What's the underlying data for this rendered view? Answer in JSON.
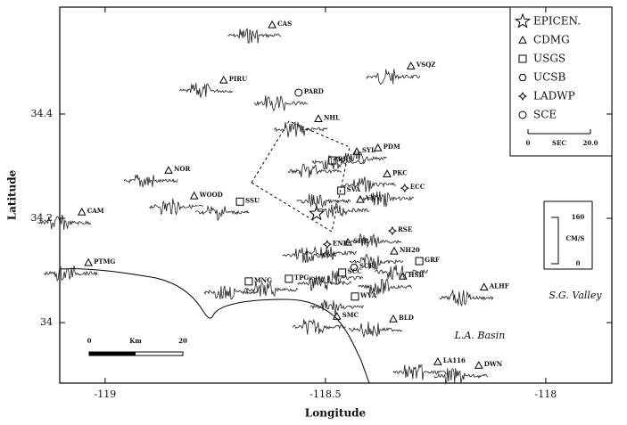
{
  "chart_data": {
    "type": "scatter",
    "xlabel": "Longitude",
    "ylabel": "Latitude",
    "xlim": [
      -119.103,
      -117.85
    ],
    "ylim": [
      33.884,
      34.605
    ],
    "xticks": [
      -119,
      -118.5,
      -118
    ],
    "yticks": [
      34,
      34.2,
      34.4
    ],
    "series": [
      {
        "name": "EPICEN.",
        "marker": "star",
        "x": [
          -118.52
        ],
        "y": [
          34.209
        ]
      },
      {
        "name": "CDMG",
        "marker": "triangle",
        "labels": [
          "CAS",
          "VSQZ",
          "PIRU",
          "NHL",
          "SYL",
          "PDM",
          "NOR",
          "PKC",
          "WOOD",
          "VNY",
          "CAM",
          "SHR",
          "NH20",
          "PTMG",
          "HSB",
          "ALHF",
          "SMC",
          "BLD",
          "LA116",
          "DWN"
        ],
        "x": [
          -118.621,
          -118.306,
          -118.731,
          -118.516,
          -118.429,
          -118.381,
          -118.856,
          -118.36,
          -118.798,
          -118.421,
          -119.053,
          -118.449,
          -118.344,
          -119.038,
          -118.324,
          -118.14,
          -118.474,
          -118.346,
          -118.245,
          -118.152
        ],
        "y": [
          34.571,
          34.492,
          34.465,
          34.391,
          34.328,
          34.335,
          34.292,
          34.285,
          34.243,
          34.236,
          34.212,
          34.154,
          34.137,
          34.115,
          34.089,
          34.068,
          34.012,
          34.007,
          33.925,
          33.918
        ]
      },
      {
        "name": "USGS",
        "marker": "square",
        "labels": [
          "RRS",
          "SSU",
          "SVA",
          "GRF",
          "SCC",
          "MNG",
          "TPG",
          "WVA"
        ],
        "x": [
          -118.484,
          -118.694,
          -118.464,
          -118.287,
          -118.462,
          -118.674,
          -118.583,
          -118.433
        ],
        "y": [
          34.311,
          34.232,
          34.253,
          34.118,
          34.096,
          34.079,
          34.084,
          34.05
        ]
      },
      {
        "name": "UCSB",
        "marker": "hexagon",
        "labels": [
          "SCR"
        ],
        "x": [
          -118.435
        ],
        "y": [
          34.106
        ]
      },
      {
        "name": "LADWP",
        "marker": "cross",
        "labels": [
          "ECC",
          "RSE",
          "ENR"
        ],
        "x": [
          -118.32,
          -118.348,
          -118.496
        ],
        "y": [
          34.258,
          34.176,
          34.15
        ]
      },
      {
        "name": "SCE",
        "marker": "circle",
        "labels": [
          "PARD"
        ],
        "x": [
          -118.561
        ],
        "y": [
          34.441
        ]
      }
    ],
    "annotations": {
      "time_scale": [
        "0",
        "SEC",
        "20.0"
      ],
      "velocity_scale": [
        "160",
        "CM/S",
        "0"
      ],
      "distance_scale": [
        "0",
        "Km",
        "20"
      ],
      "regions": [
        "S.G. Valley",
        "L.A. Basin"
      ]
    }
  }
}
